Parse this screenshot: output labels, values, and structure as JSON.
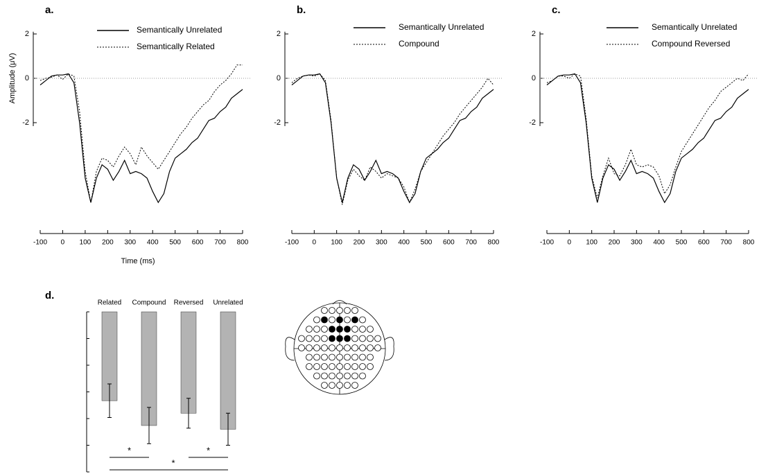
{
  "chart_data": [
    {
      "type": "line",
      "label": "a.",
      "y_label": "Amplitude (μV)",
      "x_label": "Time (ms)",
      "zero_line": true,
      "x": [
        -100,
        -75,
        -50,
        -25,
        0,
        25,
        50,
        75,
        100,
        125,
        150,
        175,
        200,
        225,
        250,
        275,
        300,
        325,
        350,
        375,
        400,
        425,
        450,
        475,
        500,
        525,
        550,
        575,
        600,
        625,
        650,
        675,
        700,
        725,
        750,
        775,
        800
      ],
      "series": [
        {
          "name": "Semantically Unrelated",
          "color": "#000000",
          "style": "solid",
          "values": [
            -0.3,
            -0.1,
            0.1,
            0.15,
            0.15,
            0.2,
            -0.2,
            -2.0,
            -4.5,
            -5.6,
            -4.5,
            -3.9,
            -4.1,
            -4.6,
            -4.2,
            -3.7,
            -4.3,
            -4.2,
            -4.3,
            -4.5,
            -5.1,
            -5.6,
            -5.2,
            -4.2,
            -3.6,
            -3.4,
            -3.2,
            -2.9,
            -2.7,
            -2.3,
            -1.9,
            -1.8,
            -1.5,
            -1.3,
            -0.9,
            -0.7,
            -0.5
          ]
        },
        {
          "name": "Semantically Related",
          "color": "#000000",
          "style": "dotted",
          "values": [
            -0.1,
            0.0,
            0.05,
            0.15,
            -0.05,
            0.2,
            0.1,
            -1.5,
            -4.2,
            -5.6,
            -4.2,
            -3.6,
            -3.7,
            -4.0,
            -3.5,
            -3.1,
            -3.4,
            -3.9,
            -3.1,
            -3.5,
            -3.8,
            -4.1,
            -3.7,
            -3.3,
            -2.9,
            -2.5,
            -2.2,
            -1.8,
            -1.5,
            -1.2,
            -1.0,
            -0.6,
            -0.3,
            -0.1,
            0.2,
            0.6,
            0.6
          ]
        }
      ],
      "xlim": [
        -100,
        800
      ],
      "xticks": [
        -100,
        0,
        100,
        200,
        300,
        400,
        500,
        600,
        700,
        800
      ],
      "ylim": [
        -7,
        2.1
      ],
      "yticks": [
        -2,
        0,
        2
      ]
    },
    {
      "type": "line",
      "label": "b.",
      "zero_line": true,
      "x": [
        -100,
        -75,
        -50,
        -25,
        0,
        25,
        50,
        75,
        100,
        125,
        150,
        175,
        200,
        225,
        250,
        275,
        300,
        325,
        350,
        375,
        400,
        425,
        450,
        475,
        500,
        525,
        550,
        575,
        600,
        625,
        650,
        675,
        700,
        725,
        750,
        775,
        800
      ],
      "series": [
        {
          "name": "Semantically Unrelated",
          "color": "#000000",
          "style": "solid",
          "values": [
            -0.3,
            -0.1,
            0.1,
            0.15,
            0.15,
            0.2,
            -0.2,
            -2.0,
            -4.5,
            -5.6,
            -4.5,
            -3.9,
            -4.1,
            -4.6,
            -4.2,
            -3.7,
            -4.3,
            -4.2,
            -4.3,
            -4.5,
            -5.1,
            -5.6,
            -5.2,
            -4.2,
            -3.6,
            -3.4,
            -3.2,
            -2.9,
            -2.7,
            -2.3,
            -1.9,
            -1.8,
            -1.5,
            -1.3,
            -0.9,
            -0.7,
            -0.5
          ]
        },
        {
          "name": "Compound",
          "color": "#000000",
          "style": "dotted",
          "values": [
            -0.2,
            0.0,
            0.1,
            0.15,
            0.1,
            0.2,
            -0.1,
            -1.9,
            -4.5,
            -5.7,
            -4.6,
            -4.1,
            -4.4,
            -4.6,
            -4.0,
            -4.2,
            -4.5,
            -4.3,
            -4.4,
            -4.5,
            -4.9,
            -5.6,
            -5.0,
            -4.2,
            -3.8,
            -3.4,
            -3.0,
            -2.6,
            -2.3,
            -2.0,
            -1.6,
            -1.3,
            -1.0,
            -0.7,
            -0.4,
            0.0,
            -0.3
          ]
        }
      ],
      "xlim": [
        -100,
        800
      ],
      "xticks": [
        -100,
        0,
        100,
        200,
        300,
        400,
        500,
        600,
        700,
        800
      ],
      "ylim": [
        -7,
        2.1
      ],
      "yticks": [
        -2,
        0,
        2
      ]
    },
    {
      "type": "line",
      "label": "c.",
      "zero_line": true,
      "x": [
        -100,
        -75,
        -50,
        -25,
        0,
        25,
        50,
        75,
        100,
        125,
        150,
        175,
        200,
        225,
        250,
        275,
        300,
        325,
        350,
        375,
        400,
        425,
        450,
        475,
        500,
        525,
        550,
        575,
        600,
        625,
        650,
        675,
        700,
        725,
        750,
        775,
        800
      ],
      "series": [
        {
          "name": "Semantically Unrelated",
          "color": "#000000",
          "style": "solid",
          "values": [
            -0.3,
            -0.1,
            0.1,
            0.15,
            0.15,
            0.2,
            -0.2,
            -2.0,
            -4.5,
            -5.6,
            -4.5,
            -3.9,
            -4.1,
            -4.6,
            -4.2,
            -3.7,
            -4.3,
            -4.2,
            -4.3,
            -4.5,
            -5.1,
            -5.6,
            -5.2,
            -4.2,
            -3.6,
            -3.4,
            -3.2,
            -2.9,
            -2.7,
            -2.3,
            -1.9,
            -1.8,
            -1.5,
            -1.3,
            -0.9,
            -0.7,
            -0.5
          ]
        },
        {
          "name": "Compound Reversed",
          "color": "#000000",
          "style": "dotted",
          "values": [
            -0.2,
            -0.1,
            0.1,
            0.1,
            0.0,
            0.2,
            0.1,
            -1.8,
            -4.4,
            -5.4,
            -4.4,
            -3.6,
            -4.3,
            -4.4,
            -3.9,
            -3.2,
            -3.9,
            -4.0,
            -3.9,
            -4.0,
            -4.4,
            -5.2,
            -4.8,
            -4.0,
            -3.3,
            -2.9,
            -2.5,
            -2.1,
            -1.7,
            -1.3,
            -1.0,
            -0.6,
            -0.4,
            -0.2,
            0.0,
            -0.1,
            0.2
          ]
        }
      ],
      "xlim": [
        -100,
        800
      ],
      "xticks": [
        -100,
        0,
        100,
        200,
        300,
        400,
        500,
        600,
        700,
        800
      ],
      "ylim": [
        -7,
        2.1
      ],
      "yticks": [
        -2,
        0,
        2
      ]
    },
    {
      "type": "bar",
      "label": "d.",
      "categories": [
        "Related",
        "Compound",
        "Reversed",
        "Unrelated"
      ],
      "values": [
        -3.33,
        -4.26,
        -3.8,
        -4.4
      ],
      "errors": [
        0.63,
        0.68,
        0.56,
        0.6
      ],
      "color": "#b3b3b3",
      "ylim": [
        -6,
        0
      ],
      "yticks": [
        0,
        -1,
        -2,
        -3,
        -4,
        -5,
        -6
      ],
      "significance": [
        {
          "pair": [
            "Related",
            "Compound"
          ],
          "label": "*"
        },
        {
          "pair": [
            "Reversed",
            "Unrelated"
          ],
          "label": "*"
        },
        {
          "pair": [
            "Related",
            "Unrelated"
          ],
          "label": "*"
        }
      ]
    }
  ]
}
